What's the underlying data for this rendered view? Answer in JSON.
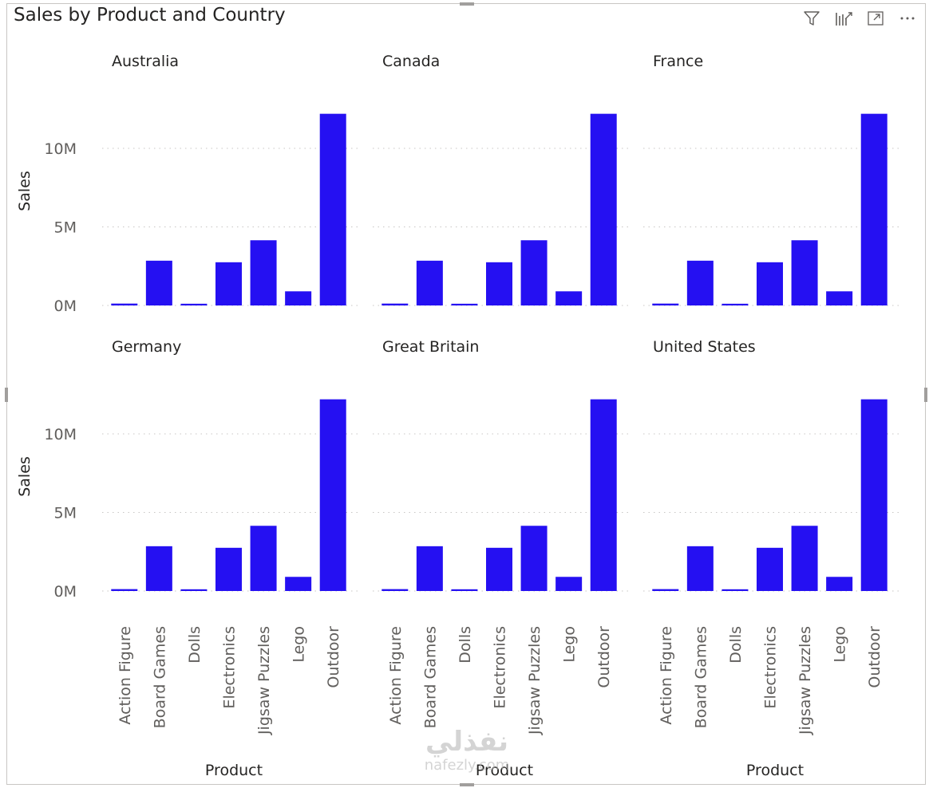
{
  "visual": {
    "title": "Sales by Product and Country",
    "toolbar": [
      {
        "name": "filter-icon"
      },
      {
        "name": "focus-bars-icon"
      },
      {
        "name": "expand-icon"
      },
      {
        "name": "more-options-icon"
      }
    ]
  },
  "watermark": {
    "arabic": "نفذلي",
    "latin": "nafezly.com"
  },
  "chart_data": {
    "type": "bar",
    "small_multiples_by": "Country",
    "xlabel": "Product",
    "ylabel": "Sales",
    "ylim": [
      0,
      13000000
    ],
    "yticks": [
      0,
      5000000,
      10000000
    ],
    "ytick_labels": [
      "0M",
      "5M",
      "10M"
    ],
    "grid": true,
    "bar_color": "#2510f2",
    "categories": [
      "Action Figure",
      "Board Games",
      "Dolls",
      "Electronics",
      "Jigsaw Puzzles",
      "Lego",
      "Outdoor"
    ],
    "panels": [
      {
        "country": "Australia",
        "values": [
          120000,
          2850000,
          110000,
          2750000,
          4150000,
          900000,
          12200000
        ]
      },
      {
        "country": "Canada",
        "values": [
          120000,
          2850000,
          110000,
          2750000,
          4150000,
          900000,
          12200000
        ]
      },
      {
        "country": "France",
        "values": [
          120000,
          2850000,
          110000,
          2750000,
          4150000,
          900000,
          12200000
        ]
      },
      {
        "country": "Germany",
        "values": [
          120000,
          2850000,
          110000,
          2750000,
          4150000,
          900000,
          12200000
        ]
      },
      {
        "country": "Great Britain",
        "values": [
          120000,
          2850000,
          110000,
          2750000,
          4150000,
          900000,
          12200000
        ]
      },
      {
        "country": "United States",
        "values": [
          120000,
          2850000,
          110000,
          2750000,
          4150000,
          900000,
          12200000
        ]
      }
    ]
  }
}
